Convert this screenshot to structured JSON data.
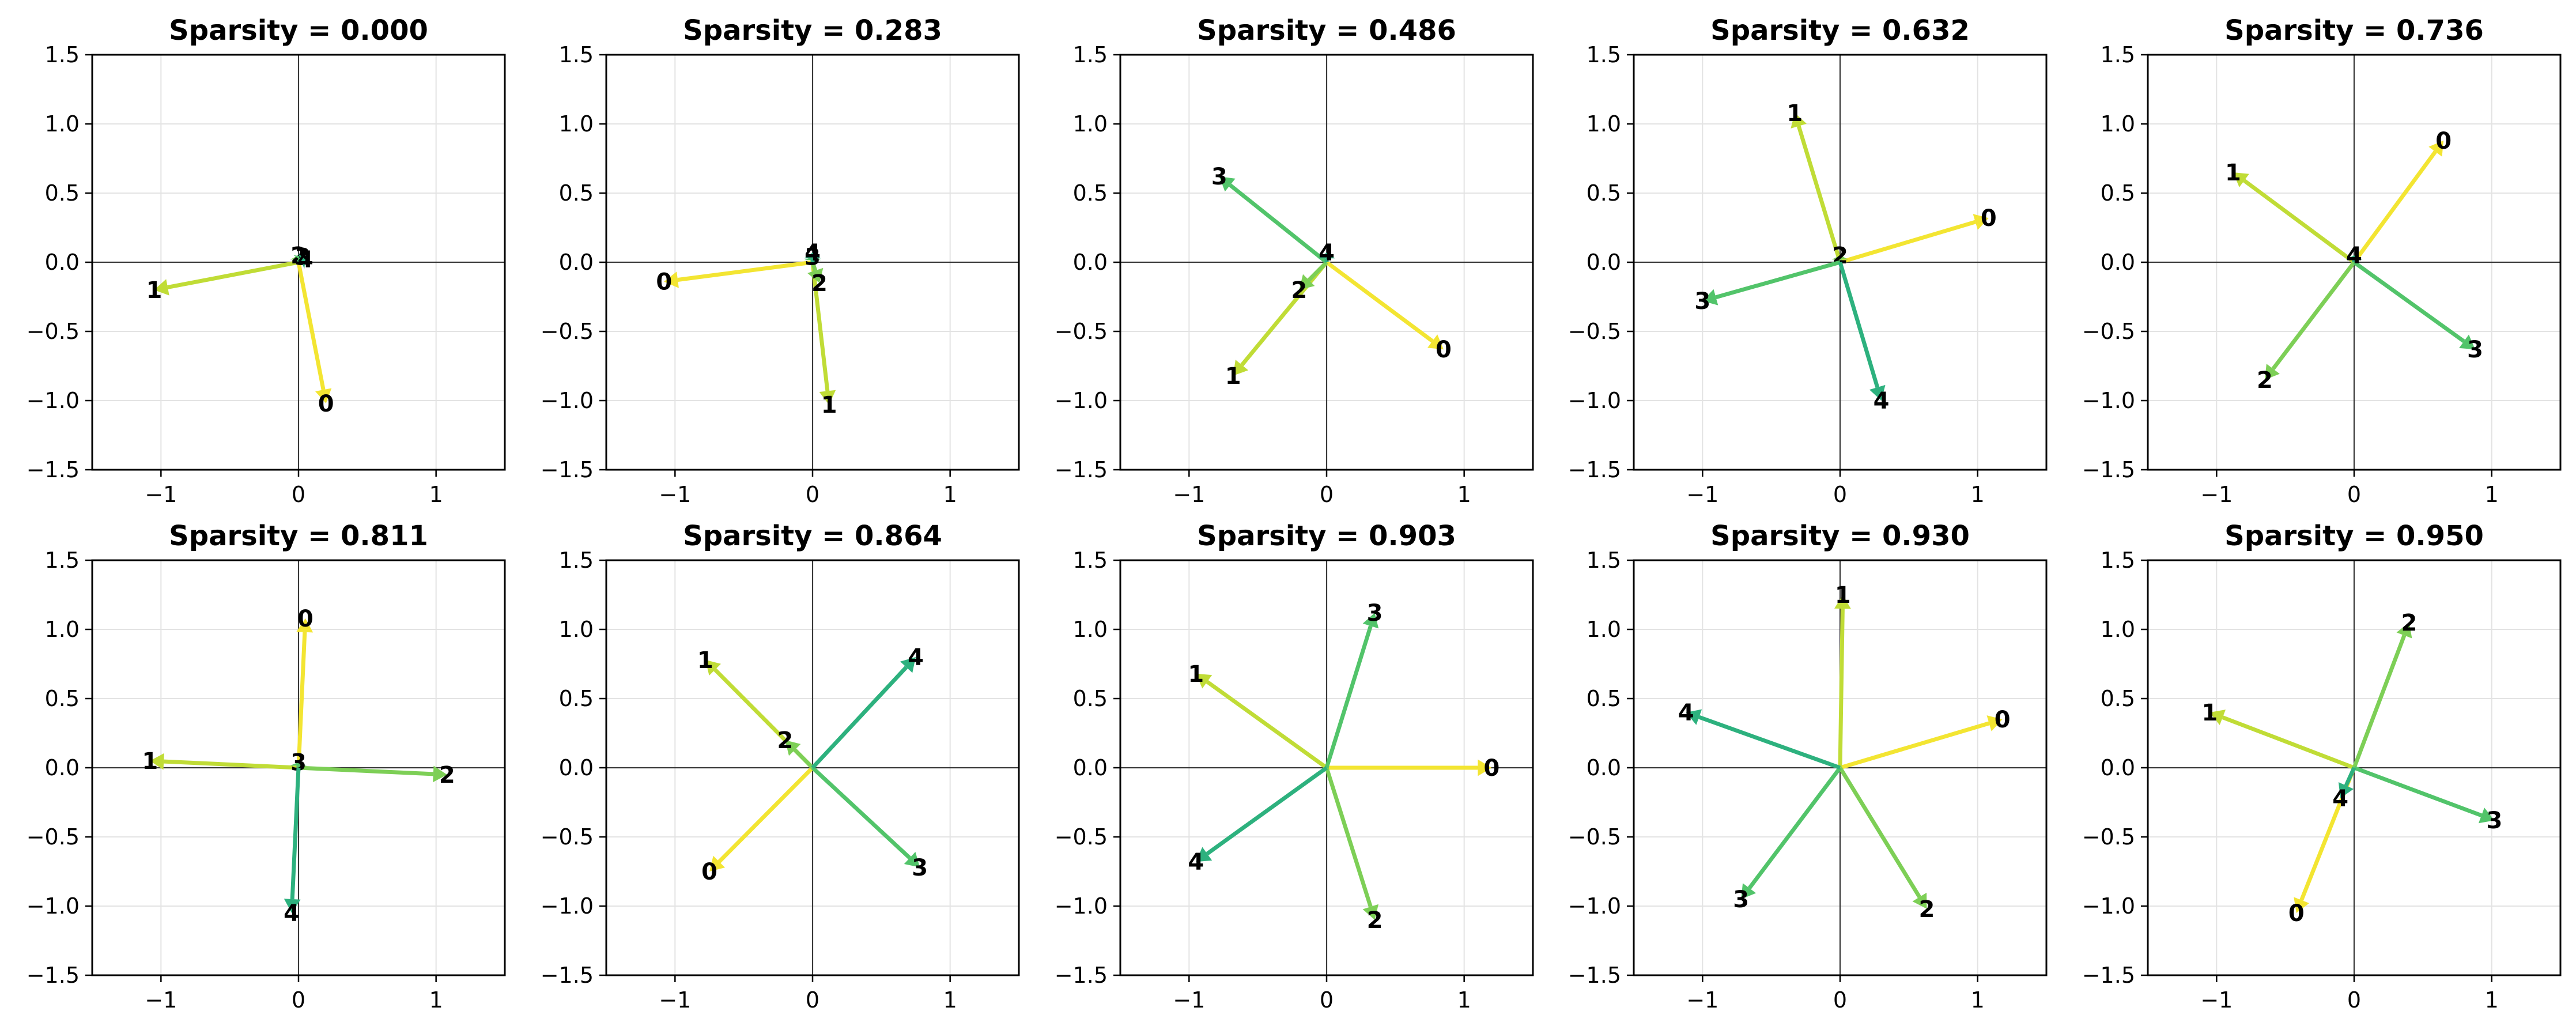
{
  "chart_data": [
    {
      "type": "quiver",
      "title": "Sparsity = 0.000",
      "xlim": [
        -1.5,
        1.5
      ],
      "ylim": [
        -1.5,
        1.5
      ],
      "xticks": [
        -1,
        0,
        1
      ],
      "yticks": [
        -1.5,
        -1.0,
        -0.5,
        0.0,
        0.5,
        1.0,
        1.5
      ],
      "grid": true,
      "vectors": [
        {
          "label": "0",
          "x": 0.2,
          "y": -1.02,
          "color": "#f3e532"
        },
        {
          "label": "1",
          "x": -1.05,
          "y": -0.2,
          "color": "#c0dc36"
        },
        {
          "label": "2",
          "x": 0.0,
          "y": 0.05,
          "color": "#7dcf56"
        },
        {
          "label": "3",
          "x": 0.03,
          "y": 0.04,
          "color": "#52c46a"
        },
        {
          "label": "4",
          "x": 0.05,
          "y": 0.02,
          "color": "#2db17e"
        }
      ]
    },
    {
      "type": "quiver",
      "title": "Sparsity = 0.283",
      "xlim": [
        -1.5,
        1.5
      ],
      "ylim": [
        -1.5,
        1.5
      ],
      "xticks": [
        -1,
        0,
        1
      ],
      "yticks": [
        -1.5,
        -1.0,
        -0.5,
        0.0,
        0.5,
        1.0,
        1.5
      ],
      "grid": true,
      "vectors": [
        {
          "label": "0",
          "x": -1.08,
          "y": -0.14,
          "color": "#f3e532"
        },
        {
          "label": "1",
          "x": 0.12,
          "y": -1.03,
          "color": "#c0dc36"
        },
        {
          "label": "2",
          "x": 0.05,
          "y": -0.15,
          "color": "#7dcf56"
        },
        {
          "label": "3",
          "x": 0.0,
          "y": 0.04,
          "color": "#52c46a"
        },
        {
          "label": "4",
          "x": 0.0,
          "y": 0.07,
          "color": "#2db17e"
        }
      ]
    },
    {
      "type": "quiver",
      "title": "Sparsity = 0.486",
      "xlim": [
        -1.5,
        1.5
      ],
      "ylim": [
        -1.5,
        1.5
      ],
      "xticks": [
        -1,
        0,
        1
      ],
      "yticks": [
        -1.5,
        -1.0,
        -0.5,
        0.0,
        0.5,
        1.0,
        1.5
      ],
      "grid": true,
      "vectors": [
        {
          "label": "0",
          "x": 0.85,
          "y": -0.63,
          "color": "#f3e532"
        },
        {
          "label": "1",
          "x": -0.68,
          "y": -0.82,
          "color": "#c0dc36"
        },
        {
          "label": "2",
          "x": -0.2,
          "y": -0.2,
          "color": "#7dcf56"
        },
        {
          "label": "3",
          "x": -0.78,
          "y": 0.62,
          "color": "#52c46a"
        },
        {
          "label": "4",
          "x": 0.0,
          "y": 0.07,
          "color": "#2db17e"
        }
      ]
    },
    {
      "type": "quiver",
      "title": "Sparsity = 0.632",
      "xlim": [
        -1.5,
        1.5
      ],
      "ylim": [
        -1.5,
        1.5
      ],
      "xticks": [
        -1,
        0,
        1
      ],
      "yticks": [
        -1.5,
        -1.0,
        -0.5,
        0.0,
        0.5,
        1.0,
        1.5
      ],
      "grid": true,
      "vectors": [
        {
          "label": "0",
          "x": 1.08,
          "y": 0.32,
          "color": "#f3e532"
        },
        {
          "label": "1",
          "x": -0.33,
          "y": 1.08,
          "color": "#c0dc36"
        },
        {
          "label": "2",
          "x": 0.0,
          "y": 0.05,
          "color": "#7dcf56"
        },
        {
          "label": "3",
          "x": -1.0,
          "y": -0.28,
          "color": "#52c46a"
        },
        {
          "label": "4",
          "x": 0.3,
          "y": -1.0,
          "color": "#2db17e"
        }
      ]
    },
    {
      "type": "quiver",
      "title": "Sparsity = 0.736",
      "xlim": [
        -1.5,
        1.5
      ],
      "ylim": [
        -1.5,
        1.5
      ],
      "xticks": [
        -1,
        0,
        1
      ],
      "yticks": [
        -1.5,
        -1.0,
        -0.5,
        0.0,
        0.5,
        1.0,
        1.5
      ],
      "grid": true,
      "vectors": [
        {
          "label": "0",
          "x": 0.65,
          "y": 0.88,
          "color": "#f3e532"
        },
        {
          "label": "1",
          "x": -0.88,
          "y": 0.65,
          "color": "#c0dc36"
        },
        {
          "label": "2",
          "x": -0.65,
          "y": -0.85,
          "color": "#7dcf56"
        },
        {
          "label": "3",
          "x": 0.88,
          "y": -0.63,
          "color": "#52c46a"
        },
        {
          "label": "4",
          "x": 0.0,
          "y": 0.05,
          "color": "#2db17e"
        }
      ]
    },
    {
      "type": "quiver",
      "title": "Sparsity = 0.811",
      "xlim": [
        -1.5,
        1.5
      ],
      "ylim": [
        -1.5,
        1.5
      ],
      "xticks": [
        -1,
        0,
        1
      ],
      "yticks": [
        -1.5,
        -1.0,
        -0.5,
        0.0,
        0.5,
        1.0,
        1.5
      ],
      "grid": true,
      "vectors": [
        {
          "label": "0",
          "x": 0.05,
          "y": 1.08,
          "color": "#f3e532"
        },
        {
          "label": "1",
          "x": -1.08,
          "y": 0.05,
          "color": "#c0dc36"
        },
        {
          "label": "2",
          "x": 1.08,
          "y": -0.05,
          "color": "#7dcf56"
        },
        {
          "label": "3",
          "x": 0.0,
          "y": 0.04,
          "color": "#52c46a"
        },
        {
          "label": "4",
          "x": -0.05,
          "y": -1.05,
          "color": "#2db17e"
        }
      ]
    },
    {
      "type": "quiver",
      "title": "Sparsity = 0.864",
      "xlim": [
        -1.5,
        1.5
      ],
      "ylim": [
        -1.5,
        1.5
      ],
      "xticks": [
        -1,
        0,
        1
      ],
      "yticks": [
        -1.5,
        -1.0,
        -0.5,
        0.0,
        0.5,
        1.0,
        1.5
      ],
      "grid": true,
      "vectors": [
        {
          "label": "0",
          "x": -0.75,
          "y": -0.75,
          "color": "#f3e532"
        },
        {
          "label": "1",
          "x": -0.78,
          "y": 0.78,
          "color": "#c0dc36"
        },
        {
          "label": "2",
          "x": -0.2,
          "y": 0.2,
          "color": "#7dcf56"
        },
        {
          "label": "3",
          "x": 0.78,
          "y": -0.72,
          "color": "#52c46a"
        },
        {
          "label": "4",
          "x": 0.75,
          "y": 0.8,
          "color": "#2db17e"
        }
      ]
    },
    {
      "type": "quiver",
      "title": "Sparsity = 0.903",
      "xlim": [
        -1.5,
        1.5
      ],
      "ylim": [
        -1.5,
        1.5
      ],
      "xticks": [
        -1,
        0,
        1
      ],
      "yticks": [
        -1.5,
        -1.0,
        -0.5,
        0.0,
        0.5,
        1.0,
        1.5
      ],
      "grid": true,
      "vectors": [
        {
          "label": "0",
          "x": 1.2,
          "y": 0.0,
          "color": "#f3e532"
        },
        {
          "label": "1",
          "x": -0.95,
          "y": 0.68,
          "color": "#c0dc36"
        },
        {
          "label": "2",
          "x": 0.35,
          "y": -1.1,
          "color": "#7dcf56"
        },
        {
          "label": "3",
          "x": 0.35,
          "y": 1.12,
          "color": "#52c46a"
        },
        {
          "label": "4",
          "x": -0.95,
          "y": -0.68,
          "color": "#2db17e"
        }
      ]
    },
    {
      "type": "quiver",
      "title": "Sparsity = 0.930",
      "xlim": [
        -1.5,
        1.5
      ],
      "ylim": [
        -1.5,
        1.5
      ],
      "xticks": [
        -1,
        0,
        1
      ],
      "yticks": [
        -1.5,
        -1.0,
        -0.5,
        0.0,
        0.5,
        1.0,
        1.5
      ],
      "grid": true,
      "vectors": [
        {
          "label": "0",
          "x": 1.18,
          "y": 0.35,
          "color": "#f3e532"
        },
        {
          "label": "1",
          "x": 0.02,
          "y": 1.25,
          "color": "#c0dc36"
        },
        {
          "label": "2",
          "x": 0.63,
          "y": -1.02,
          "color": "#7dcf56"
        },
        {
          "label": "3",
          "x": -0.72,
          "y": -0.95,
          "color": "#52c46a"
        },
        {
          "label": "4",
          "x": -1.12,
          "y": 0.4,
          "color": "#2db17e"
        }
      ]
    },
    {
      "type": "quiver",
      "title": "Sparsity = 0.950",
      "xlim": [
        -1.5,
        1.5
      ],
      "ylim": [
        -1.5,
        1.5
      ],
      "xticks": [
        -1,
        0,
        1
      ],
      "yticks": [
        -1.5,
        -1.0,
        -0.5,
        0.0,
        0.5,
        1.0,
        1.5
      ],
      "grid": true,
      "vectors": [
        {
          "label": "0",
          "x": -0.42,
          "y": -1.05,
          "color": "#f3e532"
        },
        {
          "label": "1",
          "x": -1.05,
          "y": 0.4,
          "color": "#c0dc36"
        },
        {
          "label": "2",
          "x": 0.4,
          "y": 1.05,
          "color": "#7dcf56"
        },
        {
          "label": "3",
          "x": 1.02,
          "y": -0.38,
          "color": "#52c46a"
        },
        {
          "label": "4",
          "x": -0.1,
          "y": -0.22,
          "color": "#2db17e"
        }
      ]
    }
  ]
}
